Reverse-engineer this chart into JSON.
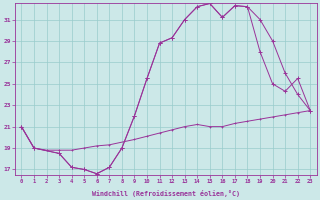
{
  "xlabel": "Windchill (Refroidissement éolien,°C)",
  "background_color": "#cce8e8",
  "grid_color": "#99cccc",
  "line_color": "#993399",
  "xlim": [
    -0.5,
    23.5
  ],
  "ylim": [
    16.5,
    32.5
  ],
  "yticks": [
    17,
    19,
    21,
    23,
    25,
    27,
    29,
    31
  ],
  "xticks": [
    0,
    1,
    2,
    3,
    4,
    5,
    6,
    7,
    8,
    9,
    10,
    11,
    12,
    13,
    14,
    15,
    16,
    17,
    18,
    19,
    20,
    21,
    22,
    23
  ],
  "line1_x": [
    0,
    1,
    3,
    4,
    5,
    6,
    7,
    8,
    9,
    10,
    11,
    12,
    13,
    14,
    15,
    16,
    17,
    18,
    19,
    20,
    21,
    22,
    23
  ],
  "line1_y": [
    21,
    19,
    18.5,
    17.2,
    17.0,
    16.6,
    17.2,
    19.0,
    22.0,
    25.5,
    28.8,
    29.3,
    31.0,
    32.2,
    32.5,
    31.2,
    32.3,
    32.2,
    31.0,
    29.0,
    26.0,
    24.0,
    22.5
  ],
  "line2_x": [
    0,
    1,
    3,
    4,
    5,
    6,
    7,
    8,
    9,
    10,
    11,
    12,
    13,
    14,
    15,
    16,
    17,
    18,
    19,
    20,
    21,
    22,
    23
  ],
  "line2_y": [
    21,
    19,
    18.5,
    17.2,
    17.0,
    16.6,
    17.2,
    19.0,
    22.0,
    25.5,
    28.8,
    29.3,
    31.0,
    32.2,
    32.5,
    31.2,
    32.3,
    32.2,
    28.0,
    25.0,
    24.3,
    25.5,
    22.5
  ],
  "line3_x": [
    0,
    1,
    2,
    3,
    4,
    5,
    6,
    7,
    9,
    10,
    11,
    12,
    13,
    14,
    15,
    16,
    17,
    18,
    19,
    20,
    21,
    22,
    23
  ],
  "line3_y": [
    21,
    19,
    18.8,
    18.8,
    18.8,
    19.0,
    19.2,
    19.3,
    19.8,
    20.1,
    20.4,
    20.7,
    21.0,
    21.2,
    21.0,
    21.0,
    21.3,
    21.5,
    21.7,
    21.9,
    22.1,
    22.3,
    22.5
  ]
}
